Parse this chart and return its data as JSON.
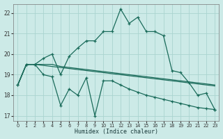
{
  "xlabel": "Humidex (Indice chaleur)",
  "xlim": [
    -0.5,
    23.5
  ],
  "ylim": [
    16.75,
    22.45
  ],
  "yticks": [
    17,
    18,
    19,
    20,
    21,
    22
  ],
  "xticks": [
    0,
    1,
    2,
    3,
    4,
    5,
    6,
    7,
    8,
    9,
    10,
    11,
    12,
    13,
    14,
    15,
    16,
    17,
    18,
    19,
    20,
    21,
    22,
    23
  ],
  "background_color": "#cceae7",
  "grid_color": "#aad4d0",
  "line_color": "#1a6b5a",
  "line_smooth1": {
    "x": [
      0,
      1,
      2,
      3,
      4,
      5,
      6,
      7,
      8,
      9,
      10,
      11,
      12,
      13,
      14,
      15,
      16,
      17,
      18,
      19,
      20,
      21,
      22,
      23
    ],
    "y": [
      18.5,
      19.5,
      19.5,
      19.45,
      19.4,
      19.35,
      19.3,
      19.25,
      19.2,
      19.15,
      19.1,
      19.05,
      19.0,
      18.95,
      18.9,
      18.85,
      18.8,
      18.75,
      18.7,
      18.65,
      18.6,
      18.55,
      18.5,
      18.45
    ]
  },
  "line_smooth2": {
    "x": [
      0,
      1,
      2,
      3,
      4,
      5,
      6,
      7,
      8,
      9,
      10,
      11,
      12,
      13,
      14,
      15,
      16,
      17,
      18,
      19,
      20,
      21,
      22,
      23
    ],
    "y": [
      18.5,
      19.5,
      19.5,
      19.5,
      19.5,
      19.4,
      19.35,
      19.3,
      19.25,
      19.2,
      19.15,
      19.1,
      19.05,
      19.0,
      18.95,
      18.9,
      18.85,
      18.8,
      18.75,
      18.7,
      18.65,
      18.6,
      18.55,
      18.5
    ]
  },
  "line_jagged": {
    "x": [
      0,
      1,
      2,
      3,
      4,
      5,
      6,
      7,
      8,
      9,
      10,
      11,
      12,
      13,
      14,
      15,
      16,
      17,
      18,
      19,
      20,
      21,
      22,
      23
    ],
    "y": [
      18.5,
      19.5,
      19.5,
      19.0,
      18.9,
      17.5,
      18.3,
      18.0,
      18.85,
      17.0,
      18.7,
      18.7,
      18.5,
      18.3,
      18.15,
      18.0,
      17.9,
      17.8,
      17.7,
      17.6,
      17.5,
      17.4,
      17.35,
      17.3
    ]
  },
  "line_peak": {
    "x": [
      0,
      1,
      2,
      3,
      4,
      5,
      6,
      7,
      8,
      9,
      10,
      11,
      12,
      13,
      14,
      15,
      16,
      17,
      18,
      19,
      20,
      21,
      22,
      23
    ],
    "y": [
      18.5,
      19.5,
      19.5,
      19.8,
      20.0,
      19.0,
      19.9,
      20.3,
      20.65,
      20.65,
      21.1,
      21.1,
      22.2,
      21.5,
      21.8,
      21.1,
      21.1,
      20.9,
      19.2,
      19.1,
      18.6,
      18.0,
      18.1,
      17.3
    ]
  }
}
